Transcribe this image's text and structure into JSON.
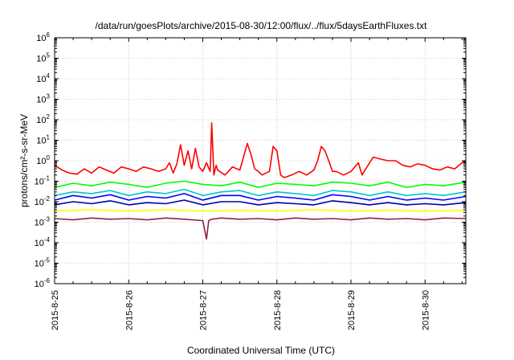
{
  "chart_data": {
    "type": "line",
    "title": "/data/run/goesPlots/archive/2015-08-30/12:00/flux/../flux/5daysEarthFluxes.txt",
    "xlabel": "Coordinated Universal Time (UTC)",
    "ylabel": "protons/cm²-s-sr-MeV",
    "yscale": "log",
    "ylim": [
      1e-06,
      1000000.0
    ],
    "xlim_days": [
      0,
      5.55
    ],
    "x_tick_labels": [
      "2015-8-25",
      "2015-8-26",
      "2015-8-27",
      "2015-8-28",
      "2015-8-29",
      "2015-8-30"
    ],
    "y_tick_labels": [
      {
        "base": "10",
        "exp": "-6"
      },
      {
        "base": "10",
        "exp": "-5"
      },
      {
        "base": "10",
        "exp": "-4"
      },
      {
        "base": "10",
        "exp": "-3"
      },
      {
        "base": "10",
        "exp": "-2"
      },
      {
        "base": "10",
        "exp": "-1"
      },
      {
        "base": "10",
        "exp": "0"
      },
      {
        "base": "10",
        "exp": "1"
      },
      {
        "base": "10",
        "exp": "2"
      },
      {
        "base": "10",
        "exp": "3"
      },
      {
        "base": "10",
        "exp": "4"
      },
      {
        "base": "10",
        "exp": "5"
      },
      {
        "base": "10",
        "exp": "6"
      }
    ],
    "grid": true,
    "series": [
      {
        "color": "#ff0000",
        "x": [
          0,
          0.1,
          0.2,
          0.3,
          0.4,
          0.5,
          0.6,
          0.7,
          0.8,
          0.9,
          1.0,
          1.1,
          1.2,
          1.3,
          1.4,
          1.5,
          1.55,
          1.6,
          1.65,
          1.7,
          1.75,
          1.8,
          1.85,
          1.9,
          1.95,
          2.0,
          2.05,
          2.1,
          2.12,
          2.15,
          2.18,
          2.2,
          2.3,
          2.4,
          2.5,
          2.55,
          2.6,
          2.65,
          2.7,
          2.75,
          2.8,
          2.9,
          2.95,
          3.0,
          3.05,
          3.1,
          3.2,
          3.3,
          3.4,
          3.5,
          3.55,
          3.6,
          3.65,
          3.7,
          3.75,
          3.8,
          3.9,
          4.0,
          4.1,
          4.15,
          4.2,
          4.3,
          4.4,
          4.5,
          4.6,
          4.7,
          4.8,
          4.9,
          5.0,
          5.1,
          5.2,
          5.3,
          5.4,
          5.5,
          5.55
        ],
        "y": [
          0.6,
          0.35,
          0.25,
          0.22,
          0.4,
          0.25,
          0.5,
          0.35,
          0.25,
          0.5,
          0.4,
          0.3,
          0.5,
          0.4,
          0.3,
          0.4,
          0.8,
          0.25,
          0.7,
          6.0,
          0.6,
          3.0,
          0.4,
          4.0,
          0.5,
          0.3,
          0.8,
          0.3,
          70,
          0.2,
          0.6,
          0.35,
          0.2,
          0.5,
          0.35,
          1.5,
          7.0,
          2.0,
          0.4,
          0.3,
          0.2,
          0.3,
          5.0,
          3.0,
          0.2,
          0.15,
          0.2,
          0.3,
          0.2,
          0.35,
          1.0,
          5.0,
          3.0,
          1.0,
          0.3,
          0.3,
          0.2,
          0.3,
          0.8,
          0.2,
          0.4,
          1.5,
          1.2,
          1.0,
          1.0,
          0.6,
          0.5,
          0.7,
          0.6,
          0.4,
          0.35,
          0.5,
          0.4,
          0.8,
          1.0
        ]
      },
      {
        "color": "#00ff00",
        "x": [
          0,
          0.25,
          0.5,
          0.75,
          1.0,
          1.25,
          1.5,
          1.75,
          2.0,
          2.25,
          2.5,
          2.75,
          3.0,
          3.25,
          3.5,
          3.75,
          4.0,
          4.25,
          4.5,
          4.75,
          5.0,
          5.25,
          5.55
        ],
        "y": [
          0.05,
          0.08,
          0.06,
          0.09,
          0.07,
          0.05,
          0.08,
          0.1,
          0.07,
          0.06,
          0.09,
          0.05,
          0.08,
          0.07,
          0.06,
          0.09,
          0.08,
          0.06,
          0.09,
          0.05,
          0.07,
          0.06,
          0.09
        ]
      },
      {
        "color": "#00c8c8",
        "x": [
          0,
          0.25,
          0.5,
          0.75,
          1.0,
          1.25,
          1.5,
          1.75,
          2.0,
          2.25,
          2.5,
          2.75,
          3.0,
          3.25,
          3.5,
          3.75,
          4.0,
          4.25,
          4.5,
          4.75,
          5.0,
          5.25,
          5.55
        ],
        "y": [
          0.02,
          0.03,
          0.025,
          0.035,
          0.02,
          0.03,
          0.025,
          0.04,
          0.02,
          0.03,
          0.035,
          0.02,
          0.03,
          0.025,
          0.02,
          0.035,
          0.03,
          0.02,
          0.03,
          0.02,
          0.025,
          0.02,
          0.03
        ]
      },
      {
        "color": "#0000ff",
        "x": [
          0,
          0.25,
          0.5,
          0.75,
          1.0,
          1.25,
          1.5,
          1.75,
          2.0,
          2.25,
          2.5,
          2.75,
          3.0,
          3.25,
          3.5,
          3.75,
          4.0,
          4.25,
          4.5,
          4.75,
          5.0,
          5.25,
          5.55
        ],
        "y": [
          0.012,
          0.02,
          0.015,
          0.022,
          0.012,
          0.018,
          0.015,
          0.025,
          0.012,
          0.02,
          0.02,
          0.012,
          0.018,
          0.015,
          0.012,
          0.022,
          0.018,
          0.012,
          0.018,
          0.012,
          0.015,
          0.012,
          0.018
        ]
      },
      {
        "color": "#0000a0",
        "x": [
          0,
          0.25,
          0.5,
          0.75,
          1.0,
          1.25,
          1.5,
          1.75,
          2.0,
          2.25,
          2.5,
          2.75,
          3.0,
          3.25,
          3.5,
          3.75,
          4.0,
          4.25,
          4.5,
          4.75,
          5.0,
          5.25,
          5.55
        ],
        "y": [
          0.007,
          0.01,
          0.008,
          0.011,
          0.007,
          0.009,
          0.008,
          0.012,
          0.007,
          0.01,
          0.01,
          0.007,
          0.009,
          0.008,
          0.007,
          0.011,
          0.009,
          0.007,
          0.009,
          0.007,
          0.008,
          0.007,
          0.009
        ]
      },
      {
        "color": "#ffff00",
        "x": [
          0,
          0.5,
          1.0,
          1.5,
          2.0,
          2.5,
          3.0,
          3.5,
          4.0,
          4.5,
          5.0,
          5.55
        ],
        "y": [
          0.0035,
          0.004,
          0.0035,
          0.004,
          0.0035,
          0.0038,
          0.0035,
          0.004,
          0.0035,
          0.0038,
          0.0035,
          0.0038
        ]
      },
      {
        "color": "#8b2252",
        "x": [
          0,
          0.25,
          0.5,
          0.75,
          1.0,
          1.25,
          1.5,
          1.75,
          2.0,
          2.05,
          2.08,
          2.12,
          2.25,
          2.5,
          2.75,
          3.0,
          3.25,
          3.5,
          3.75,
          4.0,
          4.25,
          4.5,
          4.75,
          5.0,
          5.25,
          5.55
        ],
        "y": [
          0.0015,
          0.0013,
          0.0016,
          0.0014,
          0.0015,
          0.0013,
          0.0016,
          0.0014,
          0.0012,
          0.00015,
          0.0012,
          0.0014,
          0.0016,
          0.0014,
          0.0015,
          0.0013,
          0.0016,
          0.0014,
          0.0015,
          0.0013,
          0.0016,
          0.0014,
          0.0015,
          0.0013,
          0.0016,
          0.0015
        ]
      }
    ]
  }
}
